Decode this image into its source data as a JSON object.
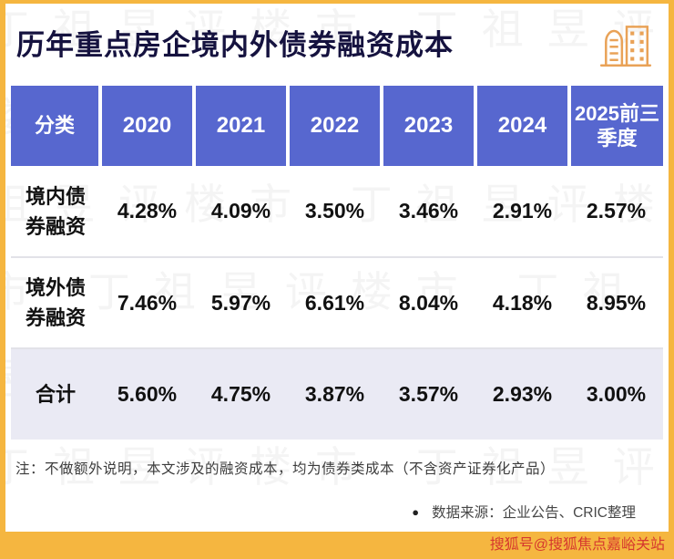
{
  "page": {
    "title": "历年重点房企境内外债券融资成本",
    "note": "注：不做额外说明，本文涉及的融资成本，均为债券类成本（不含资产证券化产品）",
    "source_bullet": "●",
    "source": "数据来源：企业公告、CRIC整理",
    "footer": "搜狐号@搜狐焦点嘉峪关站",
    "watermark": "丁祖昱评楼市"
  },
  "colors": {
    "frame": "#F5B640",
    "header_bg": "#5767CF",
    "total_row_bg": "#EAEAF4",
    "title": "#15123F",
    "footer_text": "#D6382E",
    "icon": "#E9A257"
  },
  "chart_data": {
    "type": "table",
    "title": "历年重点房企境内外债券融资成本",
    "columns": [
      "分类",
      "2020",
      "2021",
      "2022",
      "2023",
      "2024",
      "2025前三季度"
    ],
    "rows": [
      {
        "label": "境内债券融资",
        "values": [
          "4.28%",
          "4.09%",
          "3.50%",
          "3.46%",
          "2.91%",
          "2.57%"
        ]
      },
      {
        "label": "境外债券融资",
        "values": [
          "7.46%",
          "5.97%",
          "6.61%",
          "8.04%",
          "4.18%",
          "8.95%"
        ]
      },
      {
        "label": "合计",
        "values": [
          "5.60%",
          "4.75%",
          "3.87%",
          "3.57%",
          "2.93%",
          "3.00%"
        ]
      }
    ]
  }
}
